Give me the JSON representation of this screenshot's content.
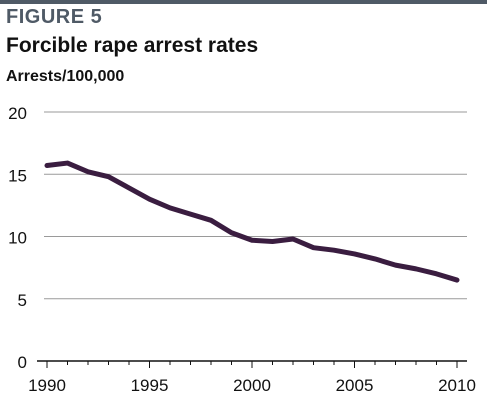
{
  "figure_label": "FIGURE 5",
  "colors": {
    "accent": "#4f5a66",
    "line": "#3a1d40",
    "grid": "#9a9a9a"
  },
  "chart_data": {
    "type": "line",
    "title": "Forcible rape arrest rates",
    "xlabel": "",
    "ylabel": "Arrests/100,000",
    "xlim": [
      1990,
      2010
    ],
    "ylim": [
      0,
      20
    ],
    "x_ticks": [
      1990,
      1995,
      2000,
      2005,
      2010
    ],
    "y_ticks": [
      0,
      5,
      10,
      15,
      20
    ],
    "grid": true,
    "x": [
      1990,
      1991,
      1992,
      1993,
      1994,
      1995,
      1996,
      1997,
      1998,
      1999,
      2000,
      2001,
      2002,
      2003,
      2004,
      2005,
      2006,
      2007,
      2008,
      2009,
      2010
    ],
    "series": [
      {
        "values": [
          15.7,
          15.9,
          15.2,
          14.8,
          13.9,
          13.0,
          12.3,
          11.8,
          11.3,
          10.3,
          9.7,
          9.6,
          9.8,
          9.1,
          8.9,
          8.6,
          8.2,
          7.7,
          7.4,
          7.0,
          6.5
        ]
      }
    ]
  }
}
